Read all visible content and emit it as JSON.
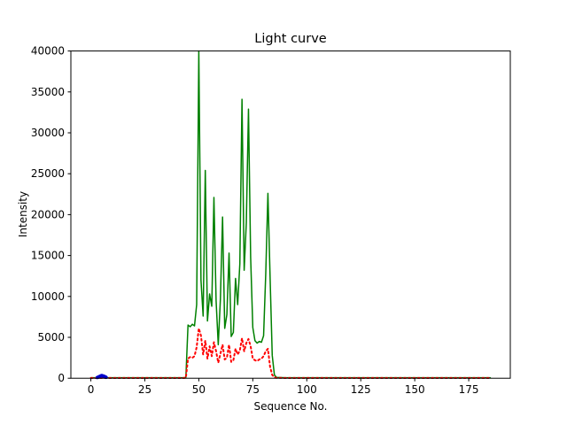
{
  "chart_data": {
    "type": "line",
    "title": "Light curve",
    "xlabel": "Sequence No.",
    "ylabel": "Intensity",
    "xlim": [
      -9.25,
      194.25
    ],
    "ylim": [
      0,
      40000
    ],
    "xticks": [
      0,
      25,
      50,
      75,
      100,
      125,
      150,
      175
    ],
    "yticks": [
      0,
      5000,
      10000,
      15000,
      20000,
      25000,
      30000,
      35000,
      40000
    ],
    "grid": false,
    "legend": "none",
    "series": [
      {
        "name": "green-solid-curve",
        "color": "#008000",
        "style": "solid",
        "width": 1.5,
        "points": [
          [
            0,
            60
          ],
          [
            10,
            60
          ],
          [
            20,
            60
          ],
          [
            30,
            60
          ],
          [
            43,
            60
          ],
          [
            44,
            100
          ],
          [
            45,
            6500
          ],
          [
            46,
            6300
          ],
          [
            47,
            6600
          ],
          [
            48,
            6400
          ],
          [
            49,
            9000
          ],
          [
            50,
            40000
          ],
          [
            51,
            12000
          ],
          [
            52,
            7600
          ],
          [
            53,
            25400
          ],
          [
            54,
            7000
          ],
          [
            55,
            10300
          ],
          [
            56,
            8800
          ],
          [
            57,
            22100
          ],
          [
            58,
            9500
          ],
          [
            59,
            4100
          ],
          [
            60,
            9700
          ],
          [
            61,
            19700
          ],
          [
            62,
            6100
          ],
          [
            63,
            7800
          ],
          [
            64,
            15300
          ],
          [
            65,
            5100
          ],
          [
            66,
            5600
          ],
          [
            67,
            12200
          ],
          [
            68,
            9000
          ],
          [
            69,
            14000
          ],
          [
            70,
            34100
          ],
          [
            71,
            13200
          ],
          [
            72,
            19000
          ],
          [
            73,
            32900
          ],
          [
            74,
            14800
          ],
          [
            75,
            6200
          ],
          [
            76,
            4600
          ],
          [
            77,
            4300
          ],
          [
            78,
            4500
          ],
          [
            79,
            4400
          ],
          [
            80,
            5200
          ],
          [
            81,
            12800
          ],
          [
            82,
            22600
          ],
          [
            83,
            12400
          ],
          [
            84,
            2800
          ],
          [
            85,
            400
          ],
          [
            86,
            100
          ],
          [
            90,
            60
          ],
          [
            120,
            60
          ],
          [
            150,
            60
          ],
          [
            185,
            60
          ]
        ]
      },
      {
        "name": "red-dotted-curve",
        "color": "#ff0000",
        "style": "dotted",
        "width": 2,
        "points": [
          [
            0,
            40
          ],
          [
            10,
            40
          ],
          [
            20,
            40
          ],
          [
            30,
            40
          ],
          [
            43,
            40
          ],
          [
            44,
            50
          ],
          [
            45,
            2400
          ],
          [
            46,
            2600
          ],
          [
            47,
            2500
          ],
          [
            48,
            2700
          ],
          [
            49,
            3800
          ],
          [
            50,
            6100
          ],
          [
            51,
            5200
          ],
          [
            52,
            2900
          ],
          [
            53,
            4600
          ],
          [
            54,
            2400
          ],
          [
            55,
            3900
          ],
          [
            56,
            2700
          ],
          [
            57,
            4400
          ],
          [
            58,
            3300
          ],
          [
            59,
            1900
          ],
          [
            60,
            3000
          ],
          [
            61,
            4100
          ],
          [
            62,
            2300
          ],
          [
            63,
            2500
          ],
          [
            64,
            4100
          ],
          [
            65,
            2000
          ],
          [
            66,
            2200
          ],
          [
            67,
            3600
          ],
          [
            68,
            2900
          ],
          [
            69,
            3400
          ],
          [
            70,
            4900
          ],
          [
            71,
            3300
          ],
          [
            72,
            4300
          ],
          [
            73,
            4800
          ],
          [
            74,
            3900
          ],
          [
            75,
            2400
          ],
          [
            76,
            2200
          ],
          [
            77,
            2100
          ],
          [
            78,
            2300
          ],
          [
            79,
            2400
          ],
          [
            80,
            2700
          ],
          [
            81,
            3300
          ],
          [
            82,
            3600
          ],
          [
            83,
            1400
          ],
          [
            84,
            400
          ],
          [
            85,
            100
          ],
          [
            86,
            50
          ],
          [
            90,
            40
          ],
          [
            120,
            40
          ],
          [
            150,
            40
          ],
          [
            185,
            40
          ]
        ]
      },
      {
        "name": "blue-marker-curve",
        "color": "#0000cd",
        "style": "solid",
        "width": 4,
        "points": [
          [
            3,
            80
          ],
          [
            4,
            200
          ],
          [
            5,
            320
          ],
          [
            6,
            250
          ],
          [
            7,
            120
          ]
        ]
      }
    ]
  }
}
